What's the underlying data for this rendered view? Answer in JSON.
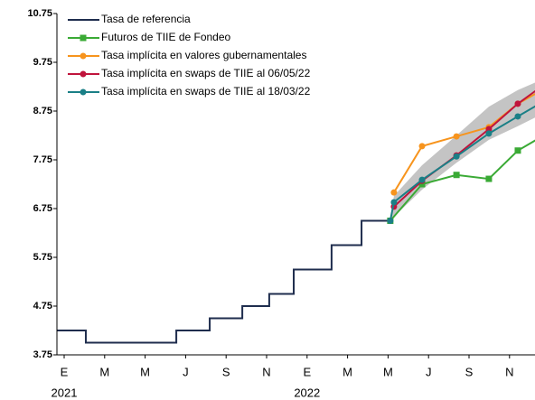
{
  "chart_data": {
    "type": "line",
    "xlim": [
      -0.36,
      23.3
    ],
    "xticks": [
      {
        "value": 0,
        "label": "E"
      },
      {
        "value": 2,
        "label": "M"
      },
      {
        "value": 4,
        "label": "M"
      },
      {
        "value": 6,
        "label": "J"
      },
      {
        "value": 8,
        "label": "S"
      },
      {
        "value": 10,
        "label": "N"
      },
      {
        "value": 12,
        "label": "E"
      },
      {
        "value": 14,
        "label": "M"
      },
      {
        "value": 16,
        "label": "M"
      },
      {
        "value": 18,
        "label": "J"
      },
      {
        "value": 20,
        "label": "S"
      },
      {
        "value": 22,
        "label": "N"
      }
    ],
    "year_labels": [
      {
        "value": 0,
        "label": "2021"
      },
      {
        "value": 12,
        "label": "2022"
      }
    ],
    "ylim": [
      3.75,
      10.75
    ],
    "yticks": [
      3.75,
      4.75,
      5.75,
      6.75,
      7.75,
      8.75,
      9.75,
      10.75
    ],
    "band": {
      "color": "#c4c4c4",
      "x": [
        16.11,
        16.29,
        17.68,
        19.38,
        20.98,
        22.41,
        23.9
      ],
      "lower": [
        6.5,
        6.58,
        7.14,
        7.69,
        8.16,
        8.44,
        8.75
      ],
      "upper": [
        6.5,
        7.01,
        7.64,
        8.25,
        8.84,
        9.18,
        9.45
      ]
    },
    "series": [
      {
        "name": "Tasa de referencia",
        "color": "#1f2d4e",
        "marker": "none",
        "x": [
          -0.36,
          1.07,
          1.07,
          5.54,
          5.54,
          7.19,
          7.19,
          8.8,
          8.8,
          10.13,
          10.13,
          11.34,
          11.34,
          13.21,
          13.21,
          14.69,
          14.69,
          16.11
        ],
        "values": [
          4.25,
          4.25,
          4.0,
          4.0,
          4.25,
          4.25,
          4.5,
          4.5,
          4.75,
          4.75,
          5.0,
          5.0,
          5.5,
          5.5,
          6.0,
          6.0,
          6.5,
          6.5
        ]
      },
      {
        "name": "Futuros de TIIE de Fondeo",
        "color": "#3aaa35",
        "marker": "square",
        "x": [
          16.11,
          17.68,
          19.38,
          20.98,
          22.41,
          23.9
        ],
        "values": [
          6.5,
          7.25,
          7.44,
          7.36,
          7.94,
          8.3
        ]
      },
      {
        "name": "Tasa implícita en valores gubernamentales",
        "color": "#f7941d",
        "marker": "circle",
        "x": [
          16.29,
          17.68,
          19.38,
          20.98,
          22.41,
          23.9
        ],
        "values": [
          7.08,
          8.03,
          8.23,
          8.42,
          8.9,
          9.25
        ]
      },
      {
        "name": "Tasa implícita en swaps de TIIE al 06/05/22",
        "color": "#c0143c",
        "marker": "circle",
        "x": [
          16.29,
          17.68,
          19.38,
          20.98,
          22.41,
          23.9
        ],
        "values": [
          6.79,
          7.32,
          7.84,
          8.38,
          8.9,
          9.35
        ]
      },
      {
        "name": "Tasa implícita en swaps de TIIE al 18/03/22",
        "color": "#1a7f86",
        "marker": "circle",
        "x": [
          16.11,
          16.29,
          17.68,
          19.38,
          20.98,
          22.41,
          23.9
        ],
        "values": [
          6.5,
          6.88,
          7.34,
          7.82,
          8.29,
          8.64,
          9.0
        ]
      }
    ]
  }
}
